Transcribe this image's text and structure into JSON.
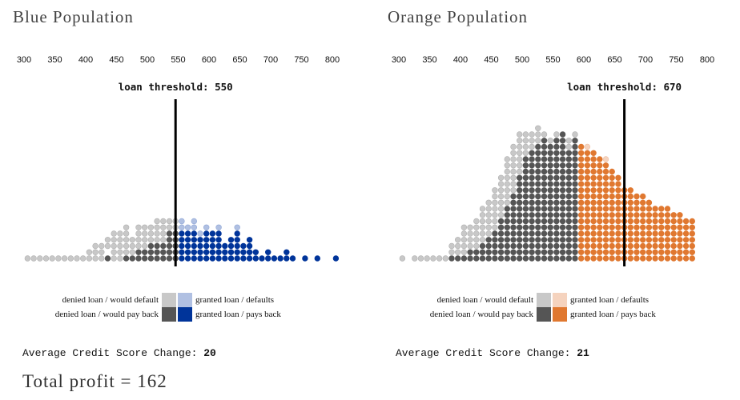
{
  "colors": {
    "denied_default": "#c8c8c8",
    "denied_payback": "#555555",
    "blue_granted_default": "#b0c0e2",
    "blue_granted_payback": "#00349a",
    "orange_granted_default": "#f5d3be",
    "orange_granted_payback": "#e07830",
    "threshold_line": "#000000"
  },
  "legend_labels": {
    "denied_default": "denied loan / would default",
    "denied_payback": "denied loan / would pay back",
    "granted_default": "granted loan / defaults",
    "granted_payback": "granted loan / pays back"
  },
  "avg_change_label": "Average Credit Score Change: ",
  "total_profit": "Total profit = 162",
  "chart_data": [
    {
      "type": "scatter",
      "title": "Blue Population",
      "xlabel": "",
      "ylabel": "",
      "xlim": [
        300,
        800
      ],
      "ticks": [
        "300",
        "350",
        "400",
        "450",
        "500",
        "550",
        "600",
        "650",
        "700",
        "750",
        "800"
      ],
      "threshold": 550,
      "threshold_label": "loan threshold: 550",
      "avg_credit_score_change": "20",
      "accent": "blue",
      "column_start_score": 310,
      "column_step": 10,
      "note": "each column = stack of dots bottom->top; L=denied/would default, D=denied/would pay back, l=granted/defaults, A=granted/pays back",
      "columns": [
        "L",
        "L",
        "L",
        "L",
        "L",
        "L",
        "L",
        "L",
        "L",
        "L",
        "LL",
        "LLL",
        "LLL",
        "D LL",
        "LLLLL",
        "LLLLL",
        "DLLLLL",
        "DLLL",
        "DDLLLL",
        "DDLLLL",
        "DDDLLL",
        "DDDLLLL",
        "DDDLLLL",
        "DDDDDLL",
        "DDDDDLL",
        "AAAAAll",
        "AAAAAl",
        "AAAAAll",
        "AAAAl",
        "AAAAAl",
        "AAAAA",
        "AAAAAl",
        "AAA",
        "AAAA",
        "AAAAAl",
        "AAA",
        "AAAA",
        "AA",
        "A",
        "AA",
        "A",
        "A",
        "AA",
        "A",
        "",
        "A",
        "",
        "A",
        "",
        "",
        "A"
      ]
    },
    {
      "type": "scatter",
      "title": "Orange Population",
      "xlabel": "",
      "ylabel": "",
      "xlim": [
        300,
        800
      ],
      "ticks": [
        "300",
        "350",
        "400",
        "450",
        "500",
        "550",
        "600",
        "650",
        "700",
        "750",
        "800"
      ],
      "threshold": 670,
      "threshold_label": "loan threshold: 670",
      "avg_credit_score_change": "21",
      "accent": "orange",
      "column_start_score": 310,
      "column_step": 10,
      "note": "each column = stack of dots bottom->top; L=denied/would default, D=denied/would pay back, l=granted/defaults, A=granted/pays back",
      "columns": [
        "L",
        "",
        "L",
        "L",
        "L",
        "L",
        "L",
        "L",
        "DLL",
        "DLLL",
        "DLLLLL",
        "DDLLLL",
        "DDLLLLL",
        "DDDLLLLLL",
        "DDDDLLLLLL",
        "DDDDDLLLLLLL",
        "DDDDDDDLLLLLLL",
        "DDDDDDDDDLLLLLLLL",
        "DDDDDDDDDDDLLLLLLLL",
        "DDDDDDDDDDDDDDLLLLLLL",
        "DDDDDDDDDDDDDDDDDLLLL",
        "DDDDDDDDDDDDDDDDDDLLL",
        "DDDDDDDDDDDDDDDDDDDLLL",
        "DDDDDDDDDDDDDDDDDDDDL",
        "DDDDDDDDDDDDDDDDDDDL",
        "DDDDDDDDDDDDDDDDDDDDL",
        "DDDDDDDDDDDDDDDDDDDDD",
        "DDDDDDDDDDDDDDDDDDLL",
        "DDDDDDDDDDDDDDDDDDDDL",
        "AAAAAAAAAAAAAAAAAAA",
        "AAAAAAAAAAAAAAAAAAl",
        "AAAAAAAAAAAAAAAAAA",
        "AAAAAAAAAAAAAAAAA",
        "AAAAAAAAAAAAAAAAl",
        "AAAAAAAAAAAAAAA",
        "AAAAAAAAAAAAAA",
        "AAAAAAAAAAAA",
        "AAAAAAAAAAAA",
        "AAAAAAAAAAA",
        "AAAAAAAAAAA",
        "AAAAAAAAAA",
        "AAAAAAAAA",
        "AAAAAAAAA",
        "AAAAAAAAA",
        "AAAAAAAA",
        "AAAAAAAA",
        "AAAAAAA",
        "AAAAAAA"
      ]
    }
  ]
}
